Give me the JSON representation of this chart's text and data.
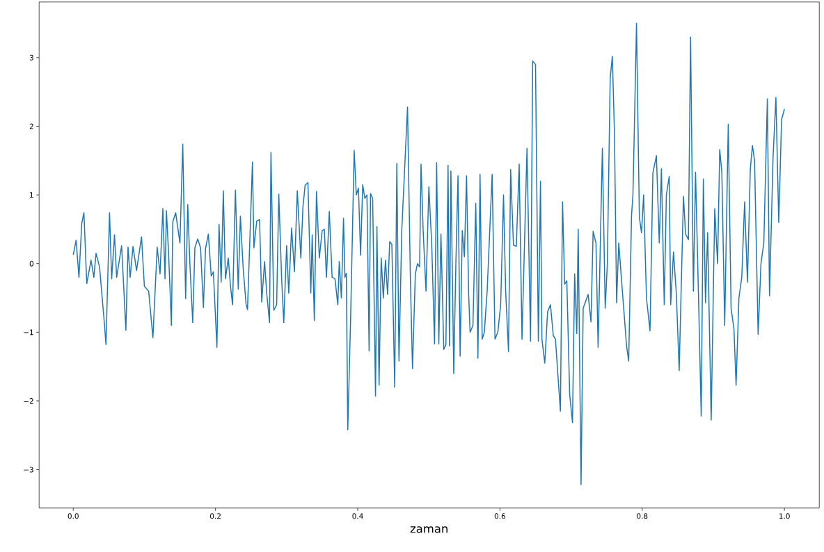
{
  "chart_data": {
    "type": "line",
    "xlabel": "zaman",
    "color": "#1f77b4",
    "xlim": [
      -0.048,
      1.049
    ],
    "ylim": [
      -3.56,
      3.81
    ],
    "xticks": [
      {
        "value": 0,
        "label": "0.0"
      },
      {
        "value": 0.2,
        "label": "0.2"
      },
      {
        "value": 0.4,
        "label": "0.4"
      },
      {
        "value": 0.6,
        "label": "0.6"
      },
      {
        "value": 0.8,
        "label": "0.8"
      },
      {
        "value": 1,
        "label": "1.0"
      }
    ],
    "yticks": [
      {
        "value": -3,
        "label": "−3"
      },
      {
        "value": -2,
        "label": "−2"
      },
      {
        "value": -1,
        "label": "−1"
      },
      0,
      1,
      2,
      3
    ],
    "grid": false,
    "x": [
      0.0,
      0.004,
      0.008,
      0.012,
      0.015,
      0.019,
      0.025,
      0.029,
      0.032,
      0.037,
      0.044,
      0.046,
      0.051,
      0.054,
      0.058,
      0.061,
      0.068,
      0.074,
      0.077,
      0.08,
      0.084,
      0.089,
      0.096,
      0.1,
      0.106,
      0.112,
      0.118,
      0.122,
      0.126,
      0.129,
      0.131,
      0.134,
      0.138,
      0.14,
      0.144,
      0.15,
      0.154,
      0.158,
      0.161,
      0.164,
      0.168,
      0.171,
      0.175,
      0.179,
      0.183,
      0.186,
      0.19,
      0.194,
      0.197,
      0.202,
      0.205,
      0.208,
      0.211,
      0.214,
      0.218,
      0.221,
      0.224,
      0.228,
      0.232,
      0.235,
      0.239,
      0.243,
      0.245,
      0.252,
      0.254,
      0.258,
      0.262,
      0.265,
      0.269,
      0.272,
      0.276,
      0.278,
      0.282,
      0.286,
      0.289,
      0.293,
      0.296,
      0.3,
      0.303,
      0.307,
      0.311,
      0.315,
      0.32,
      0.323,
      0.326,
      0.33,
      0.334,
      0.336,
      0.339,
      0.342,
      0.346,
      0.35,
      0.353,
      0.356,
      0.36,
      0.364,
      0.368,
      0.372,
      0.374,
      0.377,
      0.38,
      0.382,
      0.384,
      0.386,
      0.39,
      0.395,
      0.398,
      0.401,
      0.404,
      0.407,
      0.41,
      0.413,
      0.416,
      0.418,
      0.421,
      0.425,
      0.427,
      0.43,
      0.433,
      0.436,
      0.439,
      0.442,
      0.445,
      0.448,
      0.452,
      0.455,
      0.458,
      0.462,
      0.47,
      0.474,
      0.477,
      0.481,
      0.484,
      0.487,
      0.489,
      0.492,
      0.496,
      0.5,
      0.504,
      0.508,
      0.511,
      0.514,
      0.517,
      0.521,
      0.524,
      0.527,
      0.529,
      0.531,
      0.535,
      0.538,
      0.541,
      0.544,
      0.547,
      0.55,
      0.553,
      0.556,
      0.558,
      0.562,
      0.566,
      0.569,
      0.572,
      0.575,
      0.578,
      0.582,
      0.589,
      0.593,
      0.597,
      0.601,
      0.605,
      0.608,
      0.612,
      0.615,
      0.619,
      0.623,
      0.627,
      0.631,
      0.638,
      0.643,
      0.646,
      0.65,
      0.654,
      0.657,
      0.659,
      0.663,
      0.667,
      0.671,
      0.675,
      0.678,
      0.685,
      0.688,
      0.691,
      0.694,
      0.698,
      0.702,
      0.705,
      0.708,
      0.71,
      0.714,
      0.717,
      0.724,
      0.728,
      0.731,
      0.735,
      0.738,
      0.744,
      0.748,
      0.751,
      0.755,
      0.758,
      0.761,
      0.764,
      0.767,
      0.778,
      0.781,
      0.785,
      0.787,
      0.792,
      0.796,
      0.799,
      0.802,
      0.806,
      0.811,
      0.815,
      0.82,
      0.824,
      0.827,
      0.831,
      0.834,
      0.838,
      0.84,
      0.844,
      0.848,
      0.852,
      0.858,
      0.861,
      0.865,
      0.868,
      0.872,
      0.875,
      0.879,
      0.883,
      0.886,
      0.889,
      0.892,
      0.897,
      0.902,
      0.906,
      0.909,
      0.912,
      0.916,
      0.921,
      0.925,
      0.929,
      0.932,
      0.936,
      0.94,
      0.944,
      0.948,
      0.952,
      0.955,
      0.958,
      0.963,
      0.967,
      0.971,
      0.976,
      0.979,
      0.984,
      0.988,
      0.992,
      0.996,
      1.0
    ],
    "values": [
      0.13,
      0.34,
      -0.2,
      0.59,
      0.74,
      -0.29,
      0.05,
      -0.2,
      0.15,
      -0.05,
      -0.9,
      -1.18,
      0.74,
      -0.22,
      0.42,
      -0.2,
      0.26,
      -0.97,
      0.24,
      -0.2,
      0.25,
      -0.1,
      0.39,
      -0.33,
      -0.4,
      -1.08,
      0.24,
      -0.15,
      0.8,
      -0.22,
      0.77,
      0.16,
      -0.9,
      0.61,
      0.74,
      0.3,
      1.74,
      -0.51,
      0.86,
      0.0,
      -0.86,
      0.23,
      0.36,
      0.23,
      -0.64,
      0.22,
      0.43,
      -0.18,
      -0.12,
      -1.22,
      0.57,
      -0.27,
      1.06,
      -0.22,
      0.08,
      -0.32,
      -0.6,
      1.07,
      -0.37,
      0.69,
      -0.08,
      -0.59,
      -0.67,
      1.48,
      0.23,
      0.62,
      0.64,
      -0.56,
      0.03,
      -0.43,
      -0.86,
      1.62,
      -0.68,
      -0.6,
      1.01,
      -0.22,
      -0.86,
      0.26,
      -0.43,
      0.52,
      -0.12,
      1.06,
      0.08,
      0.83,
      1.14,
      1.18,
      -0.43,
      0.42,
      -0.83,
      1.05,
      0.08,
      0.48,
      0.5,
      -0.2,
      0.76,
      -0.2,
      -0.22,
      -0.6,
      0.03,
      -0.5,
      0.66,
      -0.2,
      -0.14,
      -2.42,
      -0.8,
      1.65,
      1.0,
      1.1,
      0.12,
      1.15,
      0.95,
      1.0,
      -1.27,
      1.02,
      0.95,
      -1.93,
      0.54,
      -1.77,
      0.08,
      -0.5,
      0.05,
      -0.45,
      0.32,
      0.28,
      -1.8,
      1.46,
      -1.42,
      0.5,
      2.28,
      -0.2,
      -1.53,
      -0.15,
      0.0,
      -0.05,
      1.45,
      0.48,
      -0.4,
      1.12,
      0.3,
      -1.17,
      1.47,
      -1.17,
      0.43,
      -1.25,
      -1.18,
      1.43,
      -1.2,
      1.35,
      -1.6,
      0.0,
      1.28,
      -1.35,
      0.48,
      0.1,
      1.28,
      -0.45,
      -1.0,
      -0.9,
      0.88,
      -1.38,
      1.3,
      -1.1,
      -1.0,
      -0.4,
      1.3,
      -1.1,
      -1.0,
      -0.6,
      1.0,
      -0.4,
      -1.28,
      1.37,
      0.27,
      0.25,
      1.45,
      -1.1,
      1.68,
      -1.13,
      2.95,
      2.9,
      -1.13,
      1.2,
      -1.1,
      -1.45,
      -0.7,
      -0.6,
      -1.05,
      -1.1,
      -2.15,
      0.9,
      -0.3,
      -0.25,
      -1.9,
      -2.32,
      -0.15,
      -1.02,
      0.5,
      -3.22,
      -0.65,
      -0.45,
      -0.85,
      0.47,
      0.3,
      -1.22,
      1.68,
      -0.65,
      0.0,
      2.7,
      3.02,
      1.9,
      -0.57,
      0.3,
      -1.2,
      -1.42,
      0.7,
      1.0,
      3.5,
      0.68,
      0.45,
      1.0,
      -0.5,
      -0.98,
      1.32,
      1.57,
      0.3,
      1.38,
      -0.6,
      1.0,
      1.27,
      -0.6,
      0.17,
      -0.44,
      -1.56,
      0.98,
      0.43,
      0.35,
      3.3,
      -0.4,
      1.33,
      -0.4,
      -2.22,
      1.23,
      -0.57,
      0.45,
      -2.28,
      0.8,
      0.0,
      1.66,
      1.33,
      -0.9,
      2.03,
      -0.65,
      -0.95,
      -1.77,
      -0.5,
      -0.2,
      0.9,
      -0.27,
      1.37,
      1.72,
      1.5,
      -1.03,
      0.0,
      0.3,
      2.4,
      -0.47,
      1.55,
      2.42,
      0.6,
      2.1,
      2.25
    ]
  }
}
